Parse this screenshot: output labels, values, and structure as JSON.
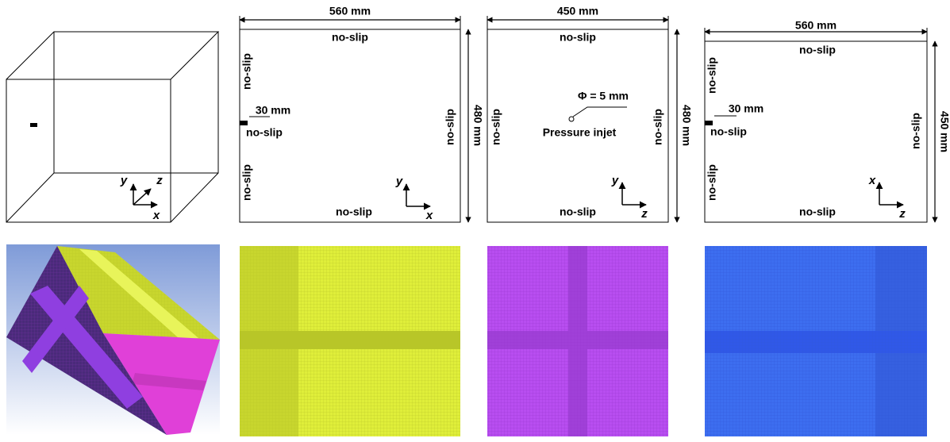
{
  "panels": [
    {
      "axis_labels": [
        "y",
        "z",
        "x"
      ]
    },
    {
      "width_label": "560 mm",
      "height_label": "480 mm",
      "boundaries": [
        "no-slip",
        "no-slip",
        "no-slip",
        "no-slip",
        "no-slip",
        "no-slip"
      ],
      "slot_label": "30 mm",
      "axis_labels": [
        "y",
        "x"
      ]
    },
    {
      "width_label": "450 mm",
      "height_label": "480 mm",
      "boundaries": [
        "no-slip",
        "no-slip",
        "no-slip",
        "no-slip"
      ],
      "diameter_label": "Φ = 5 mm",
      "inlet_label": "Pressure injet",
      "axis_labels": [
        "y",
        "z"
      ]
    },
    {
      "width_label": "560 mm",
      "height_label": "450 mm",
      "boundaries": [
        "no-slip",
        "no-slip",
        "no-slip",
        "no-slip",
        "no-slip",
        "no-slip"
      ],
      "slot_label": "30 mm",
      "axis_labels": [
        "x",
        "z"
      ]
    }
  ]
}
